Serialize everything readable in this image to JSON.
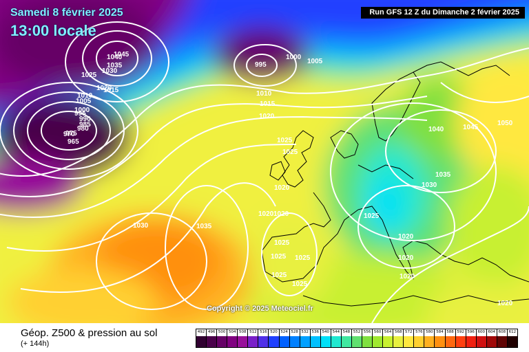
{
  "header": {
    "date": "Samedi 8 février 2025",
    "local_time": "13:00 locale",
    "run_info": "Run GFS 12 Z du Dimanche 2 février 2025"
  },
  "copyright": "Copyright © 2025 Meteociel.fr",
  "footer": {
    "title": "Géop. Z500 & pression au sol",
    "subtitle": "(+ 144h)"
  },
  "isobar_labels": [
    "1045",
    "1040",
    "1035",
    "1030",
    "1025",
    "1020",
    "1015",
    "1010",
    "1005",
    "1000",
    "995",
    "990",
    "985",
    "980",
    "975",
    "970",
    "965",
    "1000",
    "995",
    "1005",
    "1010",
    "1015",
    "1020",
    "1025",
    "1025",
    "1020",
    "1020",
    "1030",
    "1035",
    "1020",
    "1025",
    "1025",
    "1025",
    "1025",
    "1025",
    "1025",
    "1040",
    "1045",
    "1050",
    "1030",
    "1035",
    "1025",
    "1020",
    "1020",
    "1020",
    "1020"
  ],
  "legend": {
    "values": [
      "492",
      "496",
      "500",
      "504",
      "508",
      "512",
      "516",
      "520",
      "524",
      "528",
      "532",
      "536",
      "540",
      "544",
      "548",
      "552",
      "556",
      "560",
      "564",
      "568",
      "572",
      "576",
      "580",
      "584",
      "588",
      "592",
      "596",
      "600",
      "604",
      "608",
      "612"
    ],
    "colors": [
      "#300030",
      "#4a004a",
      "#660066",
      "#800080",
      "#98109a",
      "#7a20c8",
      "#5030e8",
      "#2040ff",
      "#0060ff",
      "#0080ff",
      "#00a0ff",
      "#00c0ff",
      "#00e0f8",
      "#20e8d0",
      "#40e8a0",
      "#60e070",
      "#80e040",
      "#a0e830",
      "#c8f030",
      "#e8f040",
      "#ffe840",
      "#ffd030",
      "#ffb020",
      "#ff9010",
      "#ff6810",
      "#ff4010",
      "#f02010",
      "#d01010",
      "#a00808",
      "#600404",
      "#200000"
    ]
  },
  "colors": {
    "title_cyan": "#7ef0ff",
    "isobar": "#ffffff",
    "coast": "#000000"
  }
}
